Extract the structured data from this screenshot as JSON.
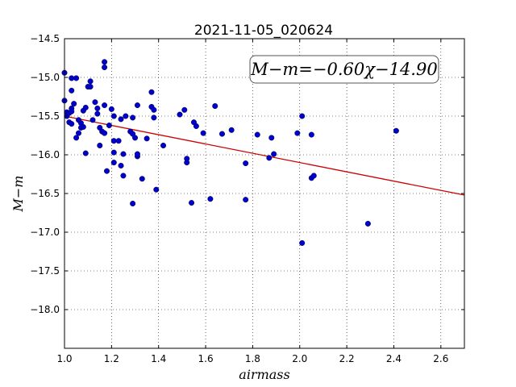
{
  "chart_data": {
    "type": "scatter",
    "title": "2021-11-05_020624",
    "xlabel": "airmass",
    "ylabel": "M−m",
    "xlim": [
      1.0,
      2.7
    ],
    "ylim": [
      -14.5,
      -18.5
    ],
    "y_inverted": true,
    "grid": true,
    "x_ticks": [
      1.0,
      1.2,
      1.4,
      1.6,
      1.8,
      2.0,
      2.2,
      2.4,
      2.6
    ],
    "x_tick_labels": [
      "1.0",
      "1.2",
      "1.4",
      "1.6",
      "1.8",
      "2.0",
      "2.2",
      "2.4",
      "2.6"
    ],
    "y_ticks": [
      -14.5,
      -15.0,
      -15.5,
      -16.0,
      -16.5,
      -17.0,
      -17.5,
      -18.0
    ],
    "y_tick_labels": [
      "−14.5",
      "−15.0",
      "−15.5",
      "−16.0",
      "−16.5",
      "−17.0",
      "−17.5",
      "−18.0"
    ],
    "annotation": "M−m=−0.60χ−14.90",
    "fit": {
      "slope": -0.6,
      "intercept": -14.9,
      "color": "#cc0000"
    },
    "point_color": "#0000cc",
    "points": [
      [
        1.0,
        -14.94
      ],
      [
        1.0,
        -15.3
      ],
      [
        1.01,
        -15.45
      ],
      [
        1.01,
        -15.5
      ],
      [
        1.02,
        -15.58
      ],
      [
        1.02,
        -15.46
      ],
      [
        1.03,
        -15.4
      ],
      [
        1.03,
        -15.44
      ],
      [
        1.03,
        -15.6
      ],
      [
        1.03,
        -15.17
      ],
      [
        1.03,
        -15.01
      ],
      [
        1.04,
        -15.34
      ],
      [
        1.05,
        -15.78
      ],
      [
        1.05,
        -15.01
      ],
      [
        1.06,
        -15.55
      ],
      [
        1.06,
        -15.72
      ],
      [
        1.07,
        -15.65
      ],
      [
        1.07,
        -15.59
      ],
      [
        1.08,
        -15.64
      ],
      [
        1.08,
        -15.43
      ],
      [
        1.09,
        -15.98
      ],
      [
        1.09,
        -15.39
      ],
      [
        1.1,
        -15.12
      ],
      [
        1.11,
        -15.05
      ],
      [
        1.11,
        -15.12
      ],
      [
        1.12,
        -15.55
      ],
      [
        1.13,
        -15.32
      ],
      [
        1.14,
        -15.4
      ],
      [
        1.14,
        -15.47
      ],
      [
        1.15,
        -15.65
      ],
      [
        1.15,
        -15.88
      ],
      [
        1.16,
        -15.7
      ],
      [
        1.17,
        -14.8
      ],
      [
        1.17,
        -14.87
      ],
      [
        1.17,
        -15.36
      ],
      [
        1.17,
        -15.72
      ],
      [
        1.18,
        -16.21
      ],
      [
        1.19,
        -15.62
      ],
      [
        1.2,
        -15.41
      ],
      [
        1.21,
        -15.5
      ],
      [
        1.21,
        -15.82
      ],
      [
        1.21,
        -15.97
      ],
      [
        1.21,
        -16.1
      ],
      [
        1.23,
        -15.82
      ],
      [
        1.24,
        -15.54
      ],
      [
        1.24,
        -16.14
      ],
      [
        1.25,
        -16.27
      ],
      [
        1.25,
        -15.99
      ],
      [
        1.26,
        -15.5
      ],
      [
        1.28,
        -15.7
      ],
      [
        1.29,
        -16.63
      ],
      [
        1.29,
        -15.52
      ],
      [
        1.29,
        -15.73
      ],
      [
        1.3,
        -15.78
      ],
      [
        1.31,
        -15.36
      ],
      [
        1.31,
        -16.02
      ],
      [
        1.31,
        -15.99
      ],
      [
        1.33,
        -16.31
      ],
      [
        1.35,
        -15.79
      ],
      [
        1.37,
        -15.19
      ],
      [
        1.37,
        -15.38
      ],
      [
        1.38,
        -15.42
      ],
      [
        1.38,
        -15.52
      ],
      [
        1.39,
        -16.45
      ],
      [
        1.42,
        -15.88
      ],
      [
        1.49,
        -15.48
      ],
      [
        1.51,
        -15.42
      ],
      [
        1.52,
        -16.1
      ],
      [
        1.52,
        -16.05
      ],
      [
        1.54,
        -16.62
      ],
      [
        1.55,
        -15.58
      ],
      [
        1.56,
        -15.63
      ],
      [
        1.59,
        -15.72
      ],
      [
        1.62,
        -16.57
      ],
      [
        1.64,
        -15.37
      ],
      [
        1.67,
        -15.73
      ],
      [
        1.71,
        -15.68
      ],
      [
        1.77,
        -16.11
      ],
      [
        1.77,
        -16.58
      ],
      [
        1.82,
        -15.74
      ],
      [
        1.87,
        -16.04
      ],
      [
        1.88,
        -15.78
      ],
      [
        1.89,
        -15.99
      ],
      [
        1.99,
        -15.72
      ],
      [
        2.01,
        -15.5
      ],
      [
        2.01,
        -17.14
      ],
      [
        2.05,
        -15.74
      ],
      [
        2.05,
        -16.3
      ],
      [
        2.06,
        -16.27
      ],
      [
        2.29,
        -16.89
      ],
      [
        2.41,
        -15.69
      ]
    ]
  }
}
